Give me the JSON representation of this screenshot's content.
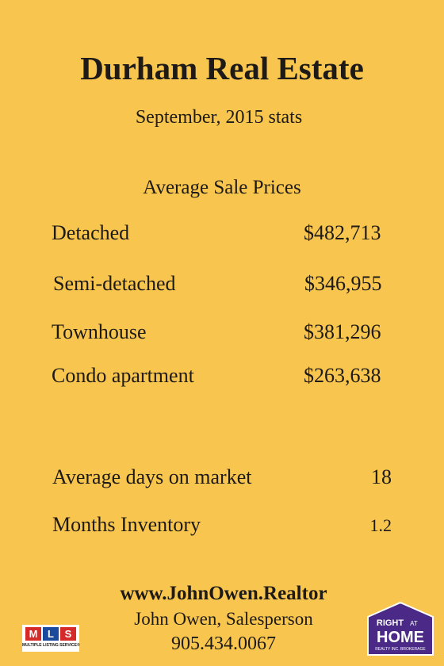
{
  "header": {
    "title": "Durham Real Estate",
    "subtitle": "September, 2015 stats"
  },
  "prices": {
    "heading": "Average Sale Prices",
    "rows": [
      [
        "Detached",
        "$482,713"
      ],
      [
        "Semi-detached",
        "$346,955"
      ],
      [
        "Townhouse",
        "$381,296"
      ],
      [
        "Condo apartment",
        "$263,638"
      ]
    ]
  },
  "stats": [
    [
      "Average days on market",
      "18"
    ],
    [
      "Months Inventory",
      "1.2"
    ]
  ],
  "footer": {
    "website": "www.JohnOwen.Realtor",
    "agent": "John Owen, Salesperson",
    "phone": "905.434.0067"
  },
  "logos": {
    "mls": {
      "letters": [
        "M",
        "L",
        "S"
      ],
      "caption": "MULTIPLE LISTING SERVICE®"
    },
    "brokerage": {
      "top": "RIGHT",
      "middle": "AT",
      "name": "HOME",
      "sub": "REALTY INC. BROKERAGE"
    }
  }
}
